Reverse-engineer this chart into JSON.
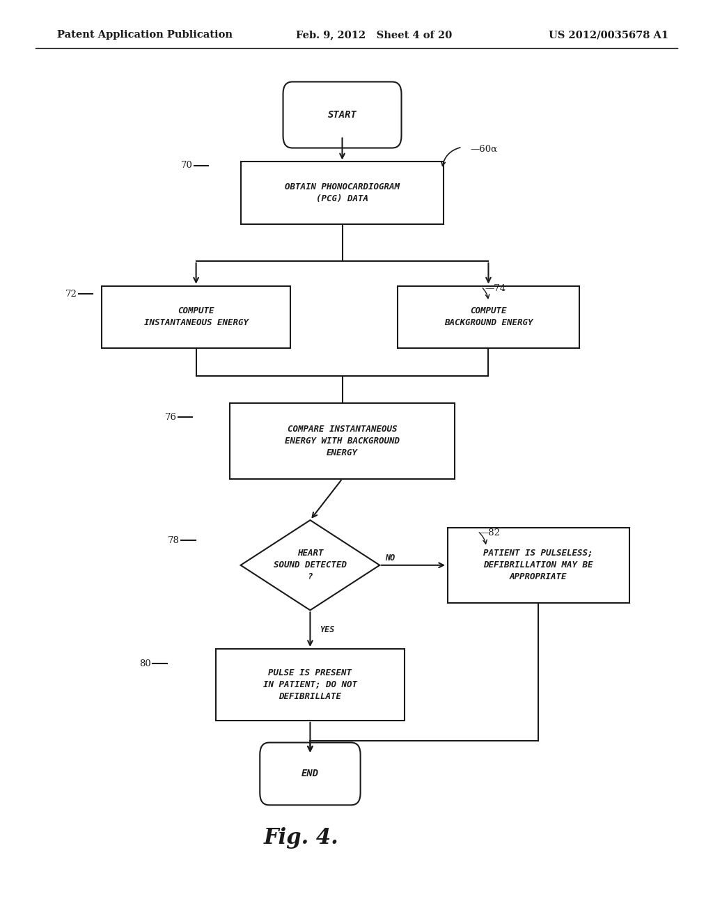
{
  "header_left": "Patent Application Publication",
  "header_mid": "Feb. 9, 2012   Sheet 4 of 20",
  "header_right": "US 2012/0035678 A1",
  "fig_label": "Fig. 4.",
  "bg_color": "#ffffff",
  "line_color": "#1a1a1a",
  "text_color": "#1a1a1a"
}
